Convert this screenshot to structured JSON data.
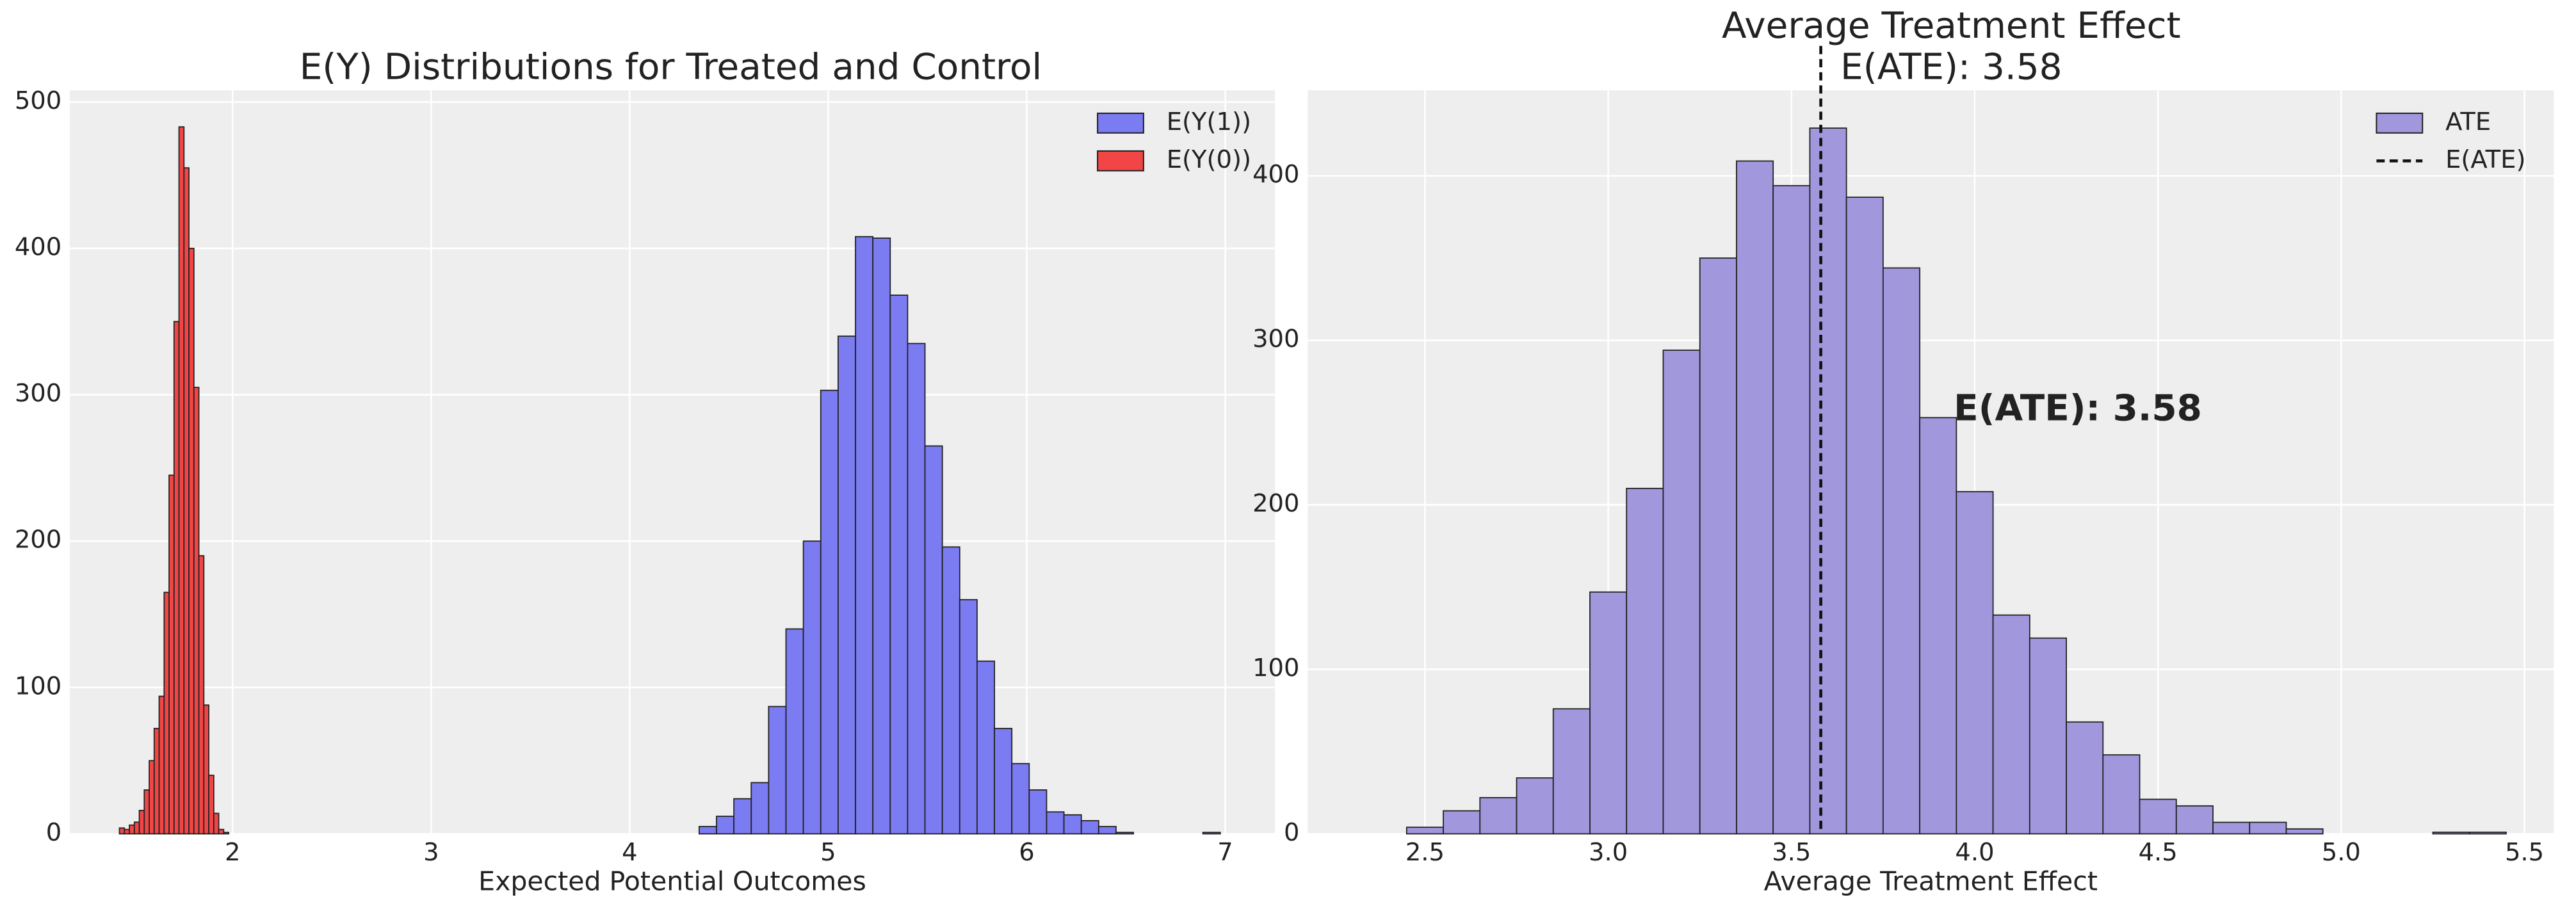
{
  "chart_data": [
    {
      "type": "histogram",
      "title": "E(Y) Distributions for Treated and Control",
      "xlabel": "Expected Potential Outcomes",
      "xlim": [
        1.18,
        7.25
      ],
      "ylim": [
        0,
        508
      ],
      "xticks": [
        2,
        3,
        4,
        5,
        6,
        7
      ],
      "yticks": [
        0,
        100,
        200,
        300,
        400,
        500
      ],
      "grid": true,
      "legend": "upper right",
      "series": [
        {
          "name": "E(Y(1))",
          "color": "#7b7bf2",
          "bins": [
            4.35,
            4.4375,
            4.525,
            4.6125,
            4.7,
            4.7875,
            4.875,
            4.9625,
            5.05,
            5.1375,
            5.225,
            5.3125,
            5.4,
            5.4875,
            5.575,
            5.6625,
            5.75,
            5.8375,
            5.925,
            6.0125,
            6.1,
            6.1875,
            6.275,
            6.3625,
            6.45,
            6.5375,
            6.625,
            6.7125,
            6.8,
            6.8875,
            6.975
          ],
          "values": [
            5,
            12,
            24,
            35,
            87,
            140,
            200,
            303,
            340,
            408,
            407,
            368,
            335,
            265,
            196,
            160,
            118,
            72,
            48,
            30,
            15,
            13,
            9,
            5,
            1,
            0,
            0,
            0,
            0,
            1
          ]
        },
        {
          "name": "E(Y(0))",
          "color": "#f24646",
          "bins": [
            1.43,
            1.455,
            1.48,
            1.505,
            1.53,
            1.555,
            1.58,
            1.605,
            1.63,
            1.655,
            1.68,
            1.705,
            1.73,
            1.755,
            1.78,
            1.805,
            1.83,
            1.855,
            1.88,
            1.905,
            1.93,
            1.955,
            1.98
          ],
          "values": [
            4,
            3,
            6,
            8,
            16,
            30,
            50,
            72,
            94,
            165,
            245,
            350,
            483,
            455,
            400,
            305,
            190,
            88,
            40,
            14,
            3,
            1
          ]
        }
      ]
    },
    {
      "type": "histogram",
      "title": "Average Treatment Effect",
      "subtitle": "E(ATE): 3.58",
      "xlabel": "Average Treatment Effect",
      "xlim": [
        2.18,
        5.58
      ],
      "ylim": [
        0,
        452
      ],
      "xticks": [
        2.5,
        {
          "value": 3,
          "label": "3.0"
        },
        3.5,
        {
          "value": 4,
          "label": "4.0"
        },
        4.5,
        {
          "value": 5,
          "label": "5.0"
        },
        5.5
      ],
      "yticks": [
        0,
        100,
        200,
        300,
        400
      ],
      "grid": true,
      "legend": "upper right",
      "series": [
        {
          "name": "ATE",
          "color": "#a197dd",
          "bins": [
            2.45,
            2.55,
            2.65,
            2.75,
            2.85,
            2.95,
            3.05,
            3.15,
            3.25,
            3.35,
            3.45,
            3.55,
            3.65,
            3.75,
            3.85,
            3.95,
            4.05,
            4.15,
            4.25,
            4.35,
            4.45,
            4.55,
            4.65,
            4.75,
            4.85,
            4.95,
            5.05,
            5.15,
            5.25,
            5.35,
            5.45
          ],
          "values": [
            4,
            14,
            22,
            34,
            76,
            147,
            210,
            294,
            350,
            409,
            394,
            429,
            387,
            344,
            253,
            208,
            133,
            119,
            68,
            48,
            21,
            17,
            7,
            7,
            3,
            0,
            0,
            0,
            1,
            1
          ]
        }
      ],
      "vline": {
        "name": "E(ATE)",
        "value": 3.58,
        "color": "#111111"
      },
      "annotation": "E(ATE): 3.58"
    }
  ]
}
